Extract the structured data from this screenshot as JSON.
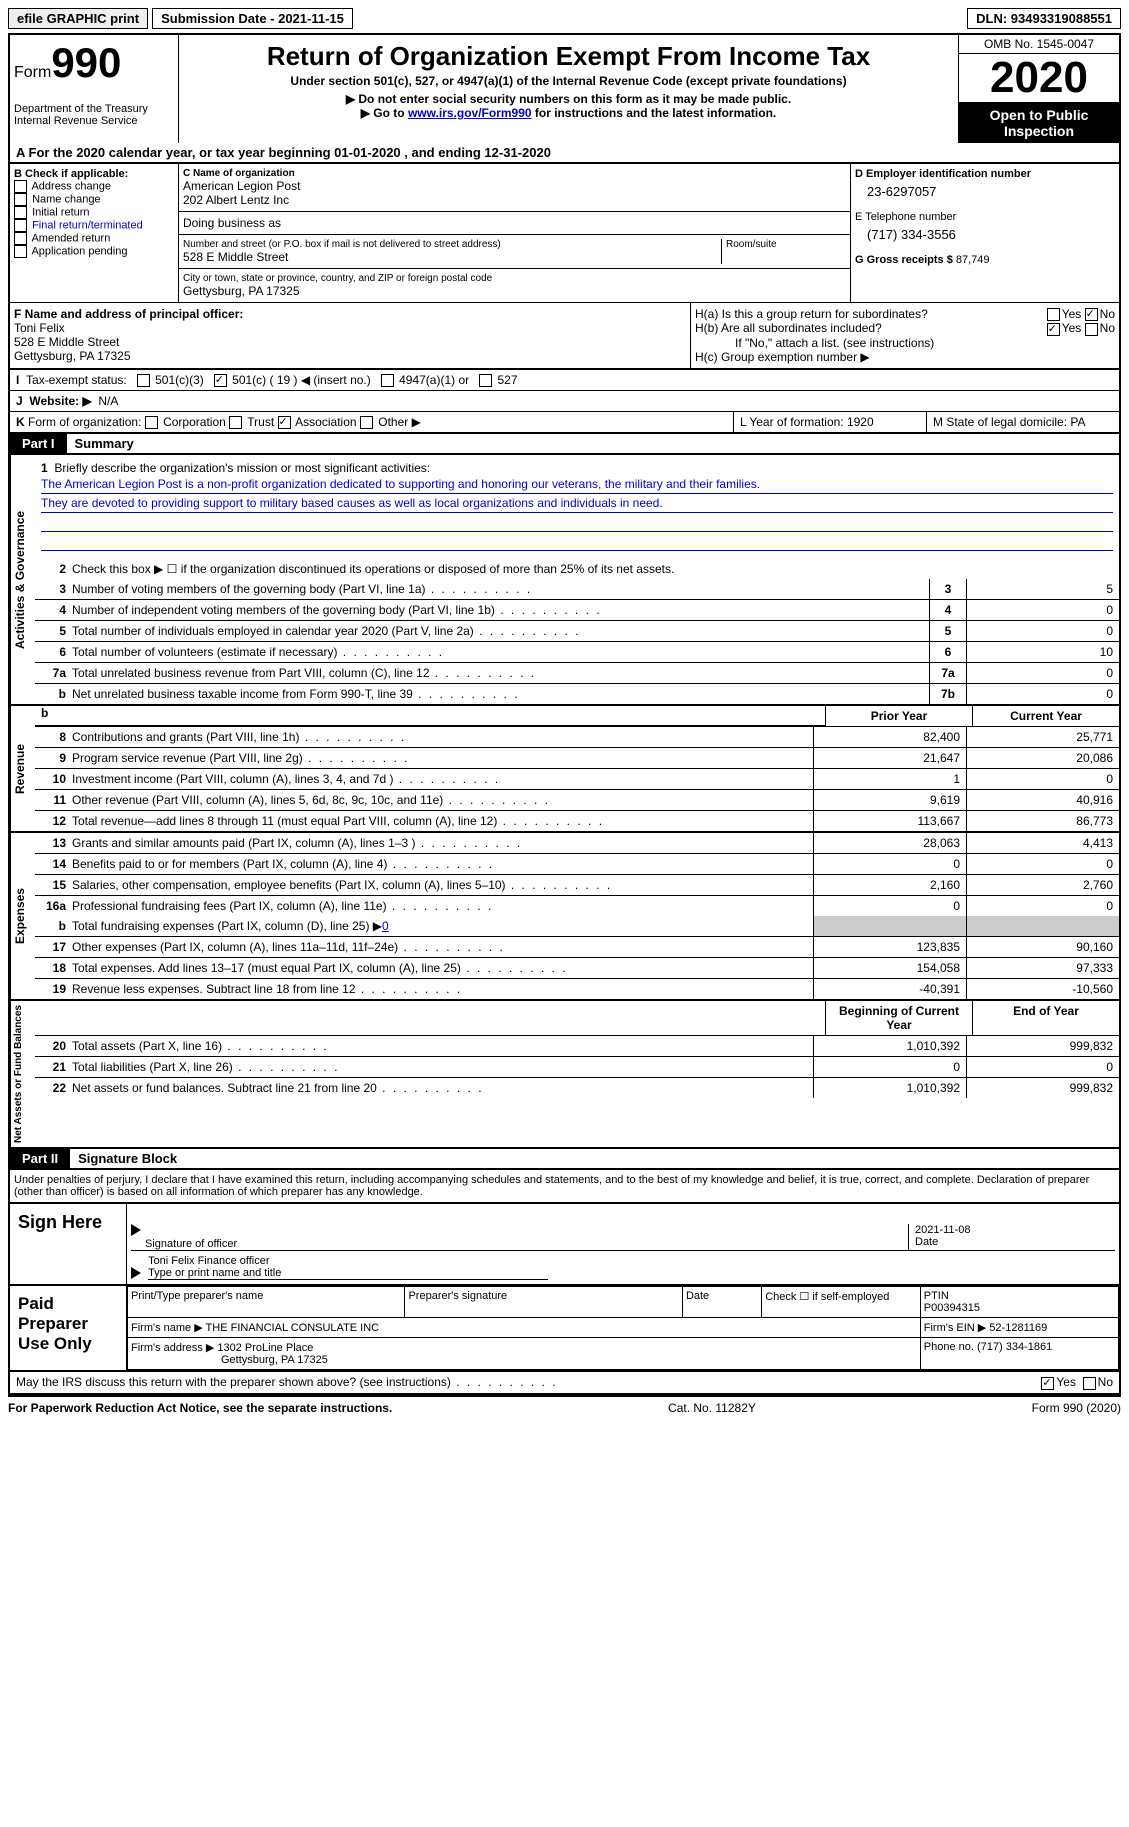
{
  "topbar": {
    "efile": "efile GRAPHIC print",
    "submission_label": "Submission Date - 2021-11-15",
    "dln": "DLN: 93493319088551"
  },
  "header": {
    "form_label": "Form",
    "form_number": "990",
    "dept": "Department of the Treasury\nInternal Revenue Service",
    "title": "Return of Organization Exempt From Income Tax",
    "subtitle": "Under section 501(c), 527, or 4947(a)(1) of the Internal Revenue Code (except private foundations)",
    "warn1": "▶ Do not enter social security numbers on this form as it may be made public.",
    "warn2_prefix": "▶ Go to ",
    "warn2_link": "www.irs.gov/Form990",
    "warn2_suffix": " for instructions and the latest information.",
    "omb": "OMB No. 1545-0047",
    "year": "2020",
    "open": "Open to Public Inspection"
  },
  "section_a": "For the 2020 calendar year, or tax year beginning 01-01-2020   , and ending 12-31-2020",
  "col_b": {
    "label": "B Check if applicable:",
    "items": [
      "Address change",
      "Name change",
      "Initial return",
      "Final return/terminated",
      "Amended return",
      "Application pending"
    ]
  },
  "col_c": {
    "name_label": "C Name of organization",
    "name1": "American Legion Post",
    "name2": "202 Albert Lentz Inc",
    "dba": "Doing business as",
    "addr_label": "Number and street (or P.O. box if mail is not delivered to street address)",
    "room": "Room/suite",
    "addr": "528 E Middle Street",
    "city_label": "City or town, state or province, country, and ZIP or foreign postal code",
    "city": "Gettysburg, PA  17325"
  },
  "col_d": {
    "ein_label": "D Employer identification number",
    "ein": "23-6297057",
    "phone_label": "E Telephone number",
    "phone": "(717) 334-3556",
    "gross_label": "G Gross receipts $",
    "gross": "87,749"
  },
  "f": {
    "label": "F  Name and address of principal officer:",
    "name": "Toni Felix",
    "addr1": "528 E Middle Street",
    "addr2": "Gettysburg, PA  17325"
  },
  "h": {
    "a_label": "H(a)  Is this a group return for subordinates?",
    "b_label": "H(b)  Are all subordinates included?",
    "b_note": "If \"No,\" attach a list. (see instructions)",
    "c_label": "H(c)  Group exemption number ▶",
    "yes": "Yes",
    "no": "No"
  },
  "i": {
    "label": "I",
    "text": "Tax-exempt status:",
    "opt1": "501(c)(3)",
    "opt2": "501(c) ( 19 ) ◀ (insert no.)",
    "opt3": "4947(a)(1) or",
    "opt4": "527"
  },
  "j": {
    "label": "J",
    "text": "Website: ▶",
    "val": "N/A"
  },
  "k": {
    "label": "K",
    "text": "Form of organization:",
    "opts": [
      "Corporation",
      "Trust",
      "Association",
      "Other ▶"
    ]
  },
  "l": {
    "label": "L Year of formation: 1920"
  },
  "m": {
    "label": "M State of legal domicile: PA"
  },
  "part1": {
    "label": "Part I",
    "title": "Summary"
  },
  "mission": {
    "num": "1",
    "label": "Briefly describe the organization's mission or most significant activities:",
    "text1": "The American Legion Post is a non-profit organization dedicated to supporting and honoring our veterans, the military and their families.",
    "text2": "They are devoted to providing support to military based causes as well as local organizations and individuals in need."
  },
  "governance": {
    "label": "Activities & Governance",
    "line2": "Check this box ▶ ☐  if the organization discontinued its operations or disposed of more than 25% of its net assets.",
    "lines": [
      {
        "num": "3",
        "desc": "Number of voting members of the governing body (Part VI, line 1a)",
        "box": "3",
        "val": "5"
      },
      {
        "num": "4",
        "desc": "Number of independent voting members of the governing body (Part VI, line 1b)",
        "box": "4",
        "val": "0"
      },
      {
        "num": "5",
        "desc": "Total number of individuals employed in calendar year 2020 (Part V, line 2a)",
        "box": "5",
        "val": "0"
      },
      {
        "num": "6",
        "desc": "Total number of volunteers (estimate if necessary)",
        "box": "6",
        "val": "10"
      },
      {
        "num": "7a",
        "desc": "Total unrelated business revenue from Part VIII, column (C), line 12",
        "box": "7a",
        "val": "0"
      },
      {
        "num": "b",
        "desc": "Net unrelated business taxable income from Form 990-T, line 39",
        "box": "7b",
        "val": "0"
      }
    ]
  },
  "cols": {
    "prior": "Prior Year",
    "current": "Current Year",
    "begin": "Beginning of Current Year",
    "end": "End of Year"
  },
  "revenue": {
    "label": "Revenue",
    "lines": [
      {
        "num": "8",
        "desc": "Contributions and grants (Part VIII, line 1h)",
        "prior": "82,400",
        "curr": "25,771"
      },
      {
        "num": "9",
        "desc": "Program service revenue (Part VIII, line 2g)",
        "prior": "21,647",
        "curr": "20,086"
      },
      {
        "num": "10",
        "desc": "Investment income (Part VIII, column (A), lines 3, 4, and 7d )",
        "prior": "1",
        "curr": "0"
      },
      {
        "num": "11",
        "desc": "Other revenue (Part VIII, column (A), lines 5, 6d, 8c, 9c, 10c, and 11e)",
        "prior": "9,619",
        "curr": "40,916"
      },
      {
        "num": "12",
        "desc": "Total revenue—add lines 8 through 11 (must equal Part VIII, column (A), line 12)",
        "prior": "113,667",
        "curr": "86,773"
      }
    ]
  },
  "expenses": {
    "label": "Expenses",
    "lines": [
      {
        "num": "13",
        "desc": "Grants and similar amounts paid (Part IX, column (A), lines 1–3 )",
        "prior": "28,063",
        "curr": "4,413"
      },
      {
        "num": "14",
        "desc": "Benefits paid to or for members (Part IX, column (A), line 4)",
        "prior": "0",
        "curr": "0"
      },
      {
        "num": "15",
        "desc": "Salaries, other compensation, employee benefits (Part IX, column (A), lines 5–10)",
        "prior": "2,160",
        "curr": "2,760"
      },
      {
        "num": "16a",
        "desc": "Professional fundraising fees (Part IX, column (A), line 11e)",
        "prior": "0",
        "curr": "0"
      }
    ],
    "line_b": {
      "num": "b",
      "desc": "Total fundraising expenses (Part IX, column (D), line 25) ▶",
      "val": "0"
    },
    "lines2": [
      {
        "num": "17",
        "desc": "Other expenses (Part IX, column (A), lines 11a–11d, 11f–24e)",
        "prior": "123,835",
        "curr": "90,160"
      },
      {
        "num": "18",
        "desc": "Total expenses. Add lines 13–17 (must equal Part IX, column (A), line 25)",
        "prior": "154,058",
        "curr": "97,333"
      },
      {
        "num": "19",
        "desc": "Revenue less expenses. Subtract line 18 from line 12",
        "prior": "-40,391",
        "curr": "-10,560"
      }
    ]
  },
  "netassets": {
    "label": "Net Assets or Fund Balances",
    "lines": [
      {
        "num": "20",
        "desc": "Total assets (Part X, line 16)",
        "prior": "1,010,392",
        "curr": "999,832"
      },
      {
        "num": "21",
        "desc": "Total liabilities (Part X, line 26)",
        "prior": "0",
        "curr": "0"
      },
      {
        "num": "22",
        "desc": "Net assets or fund balances. Subtract line 21 from line 20",
        "prior": "1,010,392",
        "curr": "999,832"
      }
    ]
  },
  "part2": {
    "label": "Part II",
    "title": "Signature Block"
  },
  "declaration": "Under penalties of perjury, I declare that I have examined this return, including accompanying schedules and statements, and to the best of my knowledge and belief, it is true, correct, and complete. Declaration of preparer (other than officer) is based on all information of which preparer has any knowledge.",
  "sign": {
    "label": "Sign Here",
    "sig_label": "Signature of officer",
    "date": "2021-11-08",
    "date_label": "Date",
    "name": "Toni Felix  Finance officer",
    "name_label": "Type or print name and title"
  },
  "preparer": {
    "label": "Paid Preparer Use Only",
    "h1": "Print/Type preparer's name",
    "h2": "Preparer's signature",
    "h3": "Date",
    "h4": "Check ☐ if self-employed",
    "h5_label": "PTIN",
    "h5": "P00394315",
    "firm_label": "Firm's name    ▶",
    "firm": "THE FINANCIAL CONSULATE INC",
    "ein_label": "Firm's EIN ▶",
    "ein": "52-1281169",
    "addr_label": "Firm's address ▶",
    "addr1": "1302 ProLine Place",
    "addr2": "Gettysburg, PA  17325",
    "phone_label": "Phone no.",
    "phone": "(717) 334-1861"
  },
  "discuss": {
    "text": "May the IRS discuss this return with the preparer shown above? (see instructions)",
    "yes": "Yes",
    "no": "No"
  },
  "footer": {
    "left": "For Paperwork Reduction Act Notice, see the separate instructions.",
    "mid": "Cat. No. 11282Y",
    "right": "Form 990 (2020)"
  }
}
